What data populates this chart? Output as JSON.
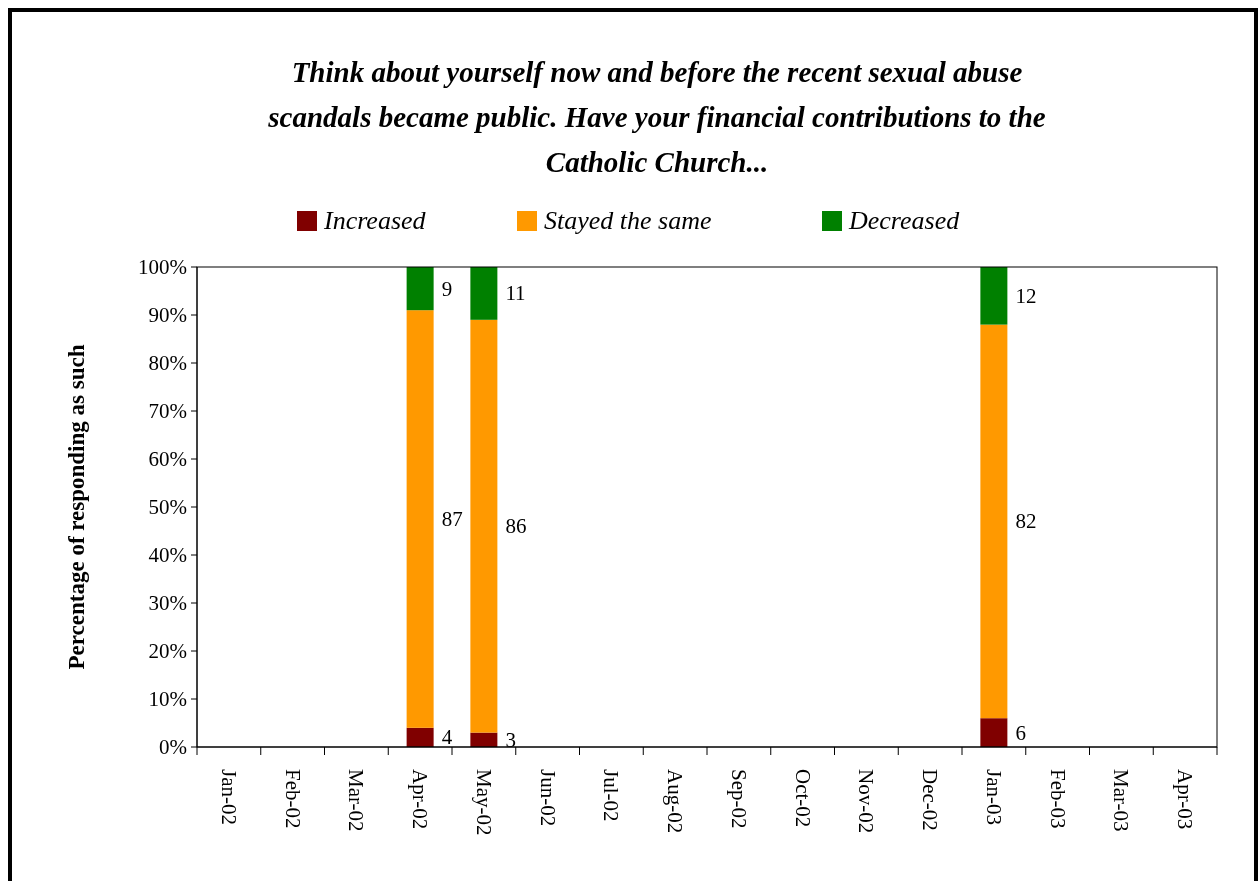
{
  "chart_data": {
    "type": "bar",
    "title": "Think about yourself now and before the recent sexual abuse scandals became public. Have your financial contributions to the Catholic Church...",
    "ylabel": "Percentage of responding as such",
    "categories": [
      "Jan-02",
      "Feb-02",
      "Mar-02",
      "Apr-02",
      "May-02",
      "Jun-02",
      "Jul-02",
      "Aug-02",
      "Sep-02",
      "Oct-02",
      "Nov-02",
      "Dec-02",
      "Jan-03",
      "Feb-03",
      "Mar-03",
      "Apr-03"
    ],
    "stacked": true,
    "series": [
      {
        "name": "Increased",
        "color": "#800000",
        "values": [
          null,
          null,
          null,
          4,
          3,
          null,
          null,
          null,
          null,
          null,
          null,
          null,
          6,
          null,
          null,
          null
        ]
      },
      {
        "name": "Stayed the same",
        "color": "#ff9900",
        "values": [
          null,
          null,
          null,
          87,
          86,
          null,
          null,
          null,
          null,
          null,
          null,
          null,
          82,
          null,
          null,
          null
        ]
      },
      {
        "name": "Decreased",
        "color": "#008000",
        "values": [
          null,
          null,
          null,
          9,
          11,
          null,
          null,
          null,
          null,
          null,
          null,
          null,
          12,
          null,
          null,
          null
        ]
      }
    ],
    "ylim": [
      0,
      100
    ],
    "yticks": [
      {
        "value": 0,
        "label": "0%"
      },
      {
        "value": 10,
        "label": "10%"
      },
      {
        "value": 20,
        "label": "20%"
      },
      {
        "value": 30,
        "label": "30%"
      },
      {
        "value": 40,
        "label": "40%"
      },
      {
        "value": 50,
        "label": "50%"
      },
      {
        "value": 60,
        "label": "60%"
      },
      {
        "value": 70,
        "label": "70%"
      },
      {
        "value": 80,
        "label": "80%"
      },
      {
        "value": 90,
        "label": "90%"
      },
      {
        "value": 100,
        "label": "100%"
      }
    ],
    "grid": false,
    "legend": "top",
    "data_labels": true
  }
}
